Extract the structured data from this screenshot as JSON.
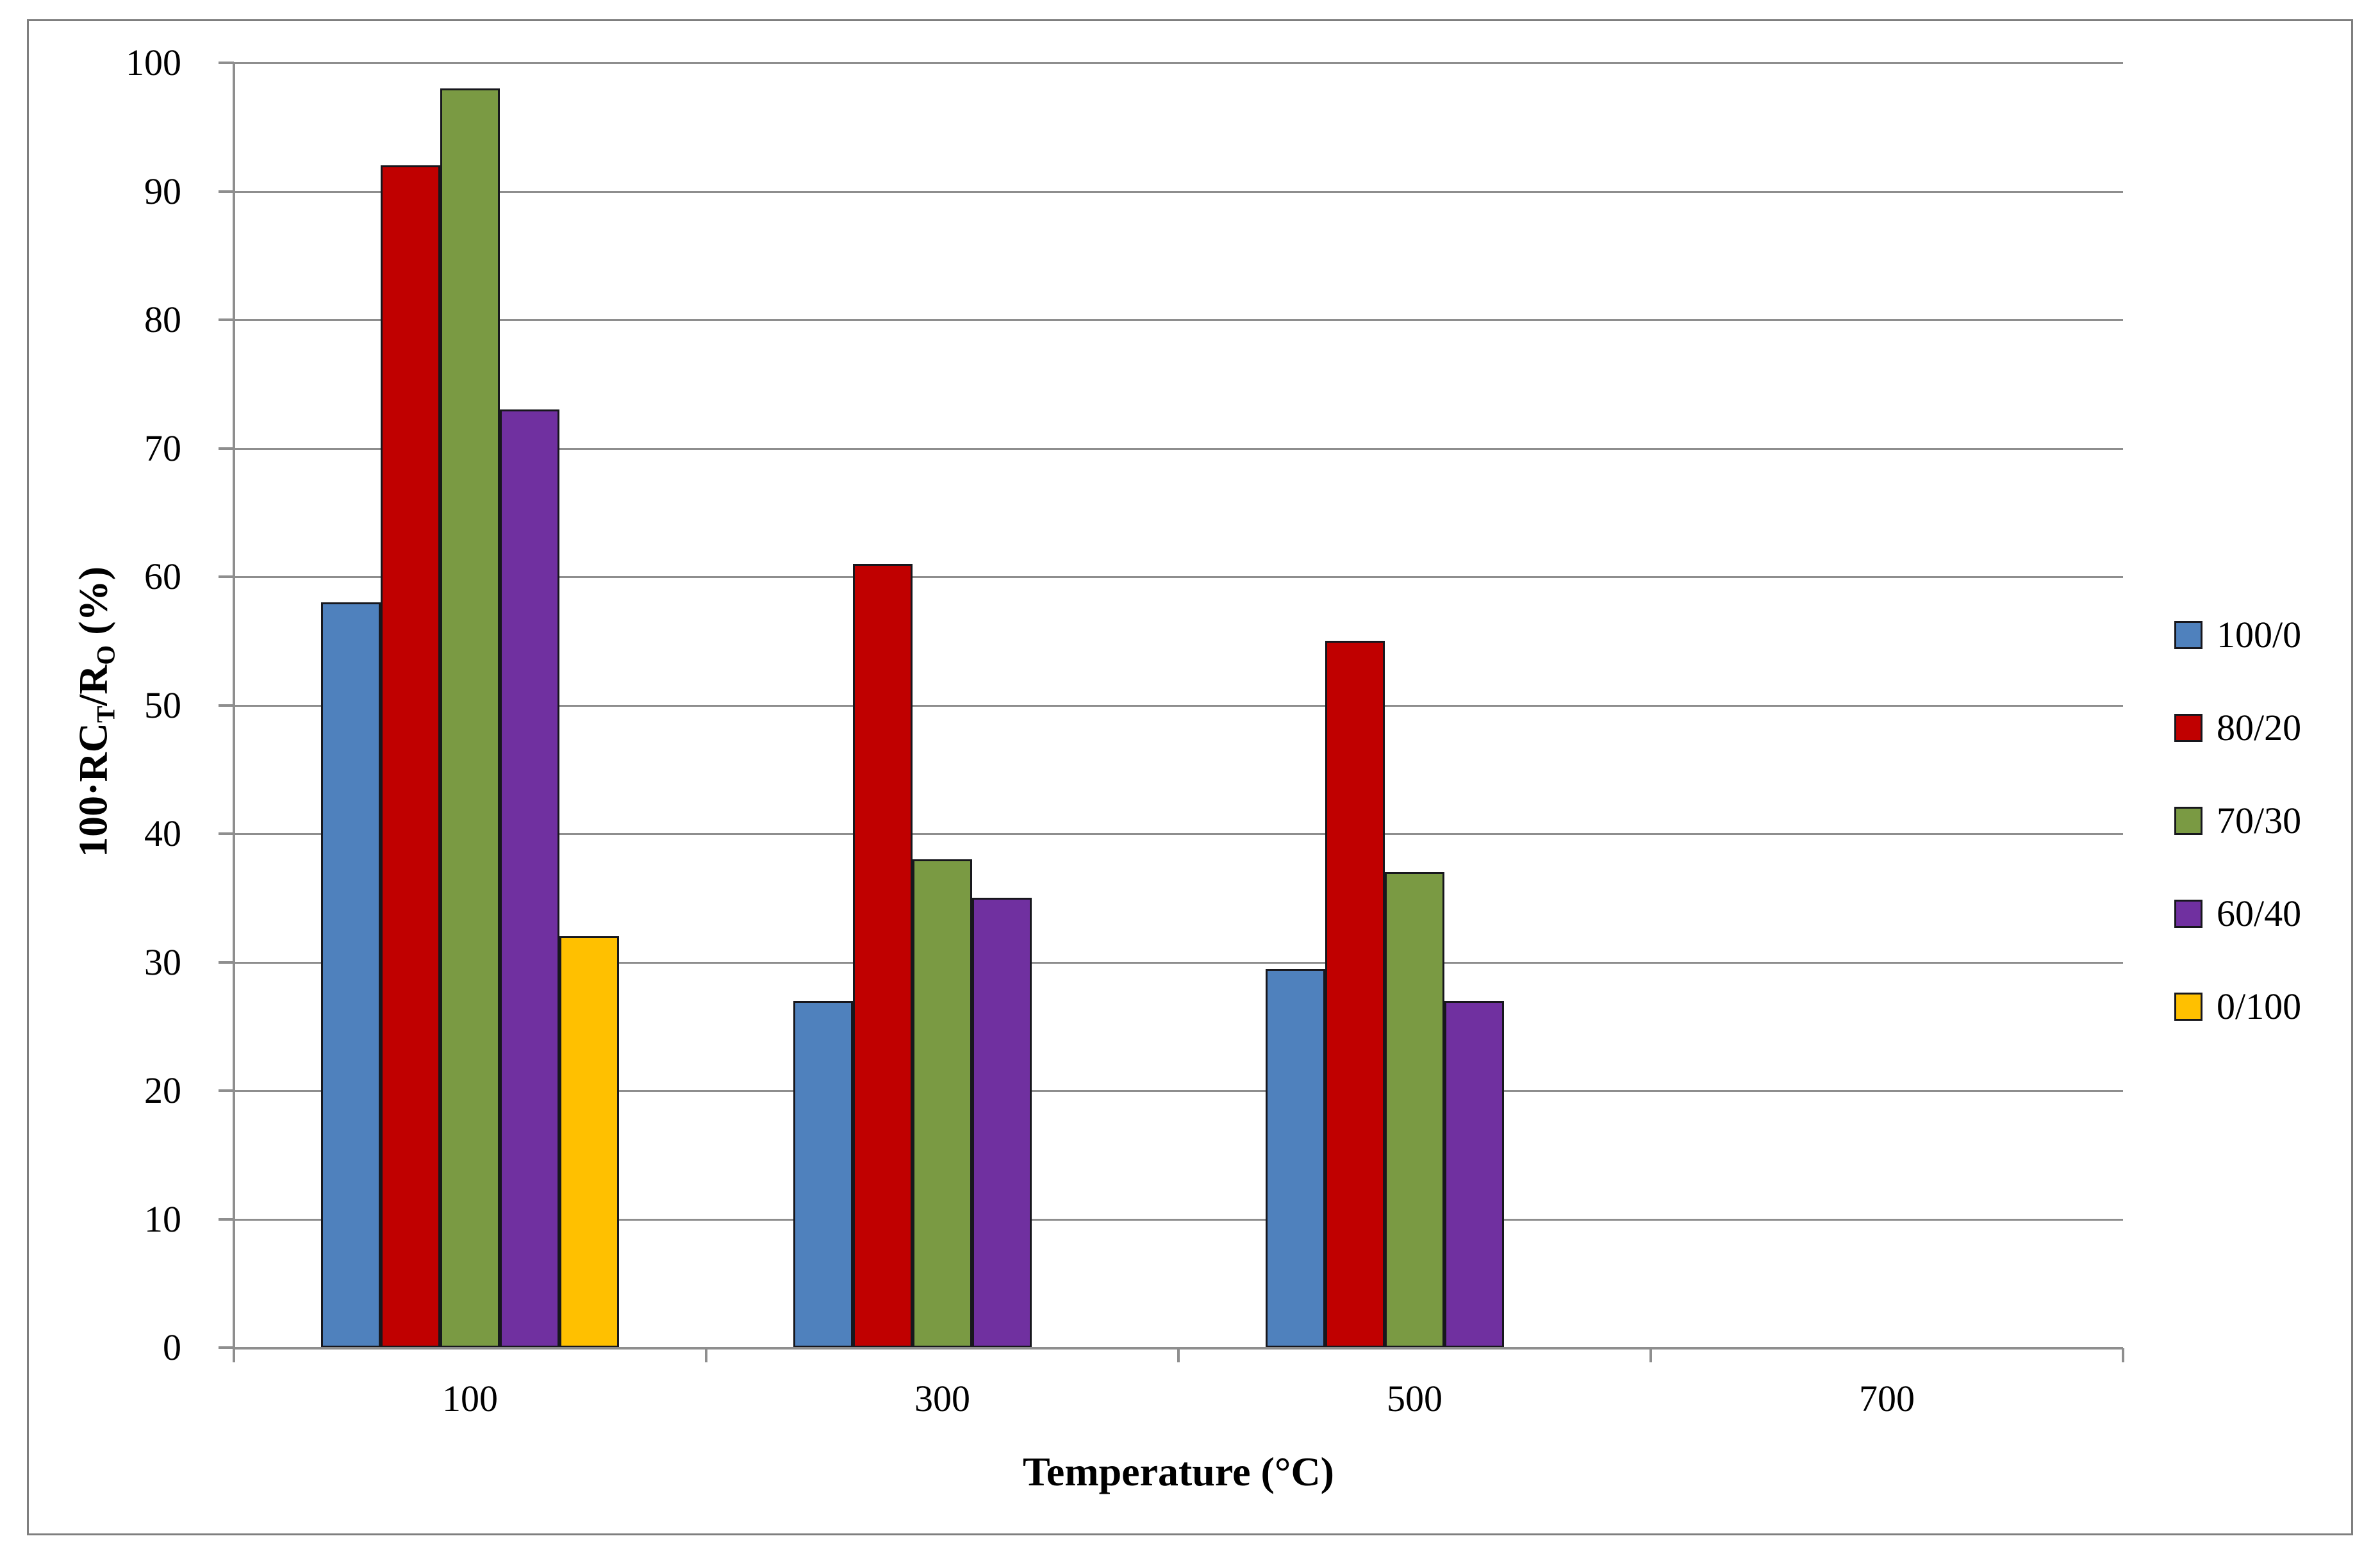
{
  "chart_data": {
    "type": "bar",
    "title": "",
    "categories": [
      "100",
      "300",
      "500",
      "700"
    ],
    "series": [
      {
        "name": "100/0",
        "color": "#4F81BD",
        "values": [
          58,
          27,
          29.5,
          null
        ]
      },
      {
        "name": "80/20",
        "color": "#C00000",
        "values": [
          92,
          61,
          55,
          null
        ]
      },
      {
        "name": "70/30",
        "color": "#7A9A43",
        "values": [
          98,
          38,
          37,
          null
        ]
      },
      {
        "name": "60/40",
        "color": "#7030A0",
        "values": [
          73,
          35,
          27,
          null
        ]
      },
      {
        "name": "0/100",
        "color": "#FFC000",
        "values": [
          32,
          null,
          null,
          null
        ]
      }
    ],
    "xlabel": "Temperature (°C)",
    "ylabel": "100·RCT/RO (%)",
    "ylabel_parts": [
      {
        "text": "100·RC"
      },
      {
        "text": "T",
        "sub": true
      },
      {
        "text": "/R"
      },
      {
        "text": "O",
        "sub": true
      },
      {
        "text": " (%)"
      }
    ],
    "ylim": [
      0,
      100
    ],
    "ytick_step": 10,
    "yticks": [
      "0",
      "10",
      "20",
      "30",
      "40",
      "50",
      "60",
      "70",
      "80",
      "90",
      "100"
    ],
    "grid": "horizontal",
    "legend_position": "right"
  },
  "style": {
    "grid_color": "#8e8e8e",
    "axis_color": "#8e8e8e",
    "bar_outline_color": "#17171d",
    "figure_border_color": "#7f7f7f",
    "background_color": "#ffffff",
    "text_color": "#000000"
  }
}
